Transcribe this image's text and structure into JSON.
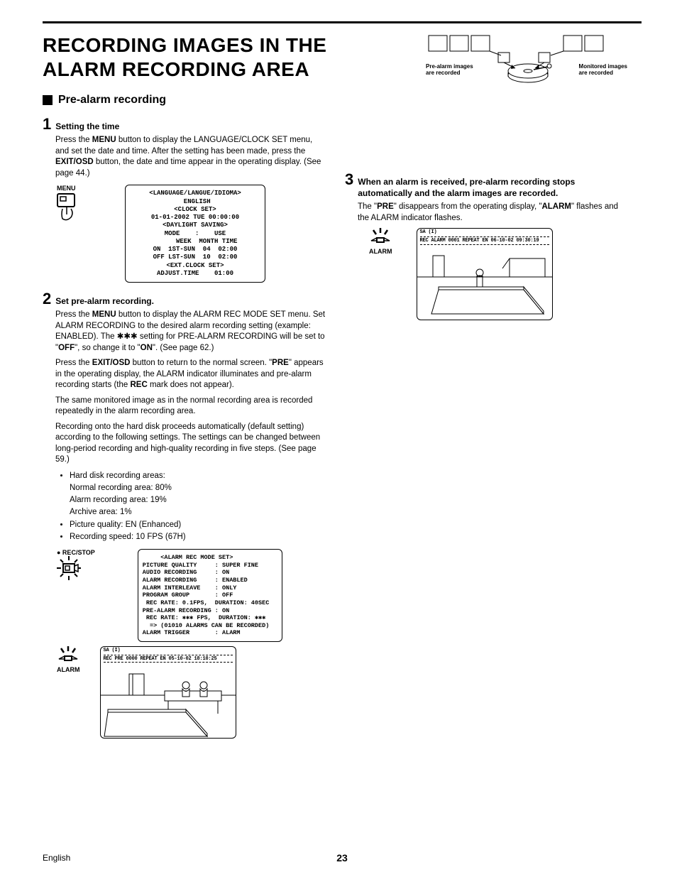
{
  "page": {
    "title": "RECORDING IMAGES IN THE ALARM RECORDING AREA",
    "sub_heading": "Pre-alarm recording",
    "footer_lang": "English",
    "page_number": "23"
  },
  "top_diagram": {
    "left_label_l1": "Pre-alarm images",
    "left_label_l2": "are recorded",
    "right_label_l1": "Monitored images",
    "right_label_l2": "are recorded"
  },
  "step1": {
    "num": "1",
    "title": "Setting the time",
    "para": "Press the <b>MENU</b> button to display the LANGUAGE/CLOCK SET menu, and set the date and time. After the setting has been made, press the <b>EXIT/OSD</b> button, the date and time appear in the operating display. (See page 44.)",
    "menu_label": "MENU",
    "screen": "<LANGUAGE/LANGUE/IDIOMA>\n ENGLISH\n<CLOCK SET>\n01-01-2002 TUE 00:00:00\n<DAYLIGHT SAVING>\nMODE    :    USE\n      WEEK  MONTH TIME\nON  1ST-SUN  04  02:00\nOFF LST-SUN  10  02:00\n<EXT.CLOCK SET>\nADJUST.TIME    01:00"
  },
  "step2": {
    "num": "2",
    "title": "Set pre-alarm recording.",
    "para1": "Press the <b>MENU</b> button to display the ALARM REC MODE SET menu. Set ALARM RECORDING to the desired alarm recording setting (example: ENABLED). The ✱✱✱ setting for PRE-ALARM RECORDING will be set to \"<b>OFF</b>\", so change it to \"<b>ON</b>\". (See page 62.)",
    "para2": "Press the <b>EXIT/OSD</b> button to return to the normal screen. \"<b>PRE</b>\" appears in the operating display, the ALARM indicator illuminates and pre-alarm recording starts (the <b>REC</b> mark does not appear).",
    "para3": "The same monitored image as in the normal recording area is recorded repeatedly in the alarm recording area.",
    "para4": "Recording onto the hard disk proceeds automatically (default setting) according to the following settings. The settings can be changed between long-period recording and high-quality recording in five steps. (See page 59.)",
    "bullet1": "Hard disk recording areas:",
    "bullet1a": "Normal recording area: 80%",
    "bullet1b": "Alarm recording area: 19%",
    "bullet1c": "Archive area: 1%",
    "bullet2": "Picture quality: EN (Enhanced)",
    "bullet3": "Recording speed: 10 FPS (67H)",
    "rec_stop_label": "● REC/STOP",
    "alarm_label": "ALARM",
    "screen": "     <ALARM REC MODE SET>\nPICTURE QUALITY     : SUPER FINE\nAUDIO RECORDING     : ON\nALARM RECORDING     : ENABLED\nALARM INTERLEAVE    : ONLY\nPROGRAM GROUP       : OFF\n REC RATE: 0.1FPS,  DURATION: 40SEC\nPRE-ALARM RECORDING : ON\n REC RATE: ✱✱✱ FPS,  DURATION: ✱✱✱\n  => (01010 ALARMS CAN BE RECORDED)\nALARM TRIGGER       : ALARM",
    "osd_top": "                          SA (I)",
    "osd_line": "REC PRE    0000 REPEAT EN    05-10-02 18:10:25"
  },
  "step3": {
    "num": "3",
    "title": "When an alarm is received, pre-alarm recording stops automatically and the alarm images are recorded.",
    "para": "The \"<b>PRE</b>\" disappears from the operating display, \"<b>ALARM</b>\" flashes and the ALARM indicator flashes.",
    "alarm_label": "ALARM",
    "osd_top": "                          SA (I)",
    "osd_line": "REC ALARM  0001 REPEAT EN    06-10-02 09:30:19"
  }
}
